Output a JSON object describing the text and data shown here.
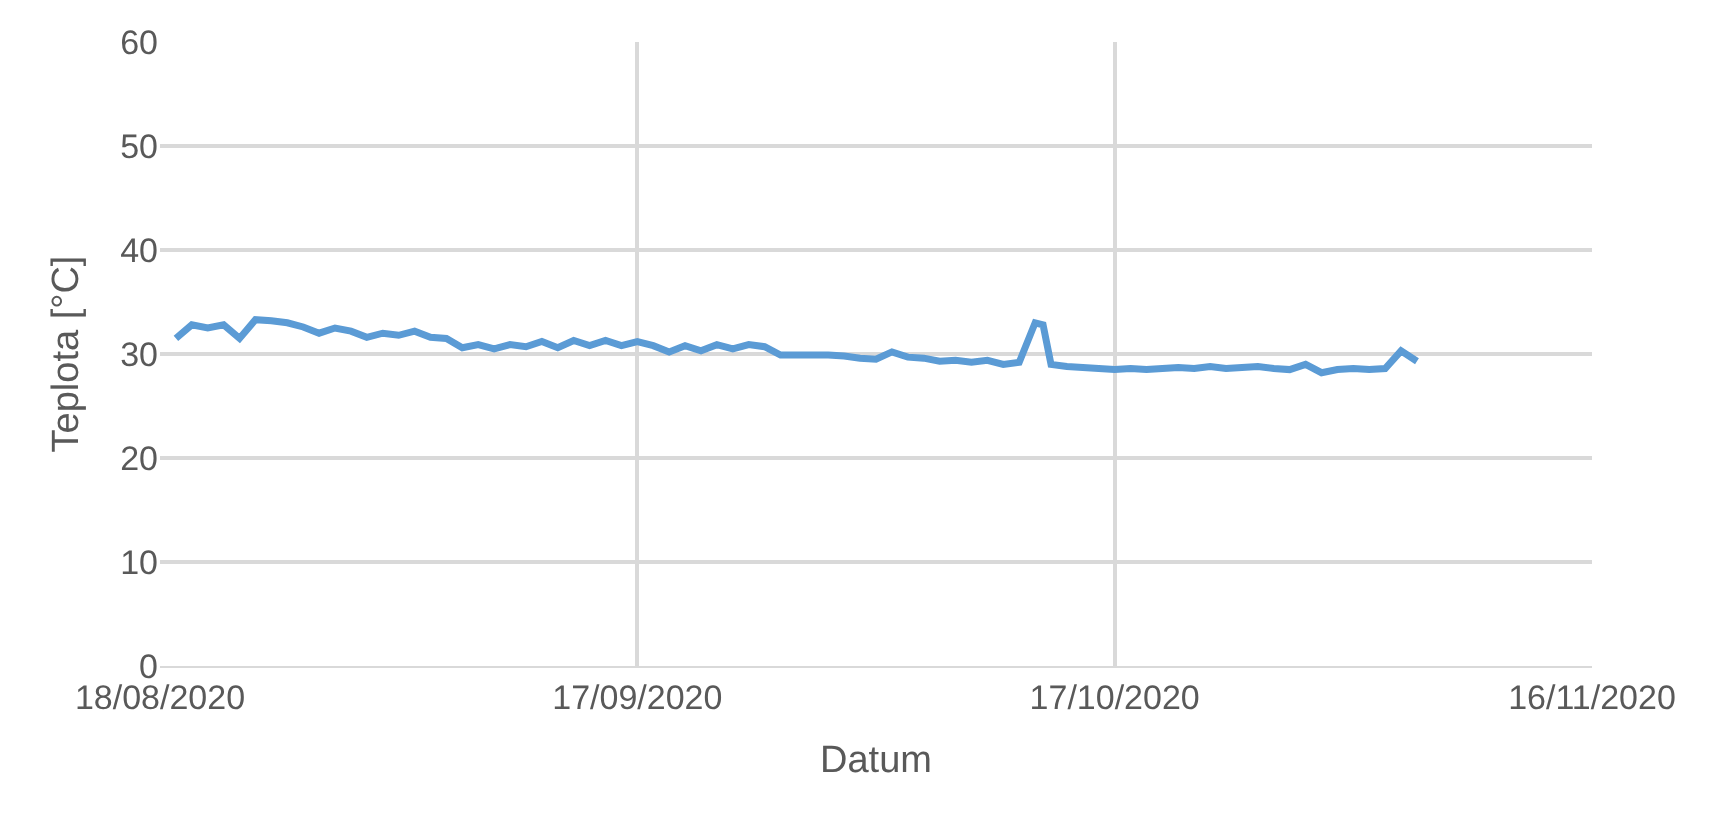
{
  "chart_data": {
    "type": "line",
    "xlabel": "Datum",
    "ylabel": "Teplota [°C]",
    "x": [
      "2020-08-19",
      "2020-08-20",
      "2020-08-21",
      "2020-08-22",
      "2020-08-23",
      "2020-08-24",
      "2020-08-25",
      "2020-08-26",
      "2020-08-27",
      "2020-08-28",
      "2020-08-29",
      "2020-08-30",
      "2020-08-31",
      "2020-09-01",
      "2020-09-02",
      "2020-09-03",
      "2020-09-04",
      "2020-09-05",
      "2020-09-06",
      "2020-09-07",
      "2020-09-08",
      "2020-09-09",
      "2020-09-10",
      "2020-09-11",
      "2020-09-12",
      "2020-09-13",
      "2020-09-14",
      "2020-09-15",
      "2020-09-16",
      "2020-09-17",
      "2020-09-18",
      "2020-09-19",
      "2020-09-20",
      "2020-09-21",
      "2020-09-22",
      "2020-09-23",
      "2020-09-24",
      "2020-09-25",
      "2020-09-26",
      "2020-09-27",
      "2020-09-28",
      "2020-09-29",
      "2020-09-30",
      "2020-10-01",
      "2020-10-02",
      "2020-10-03",
      "2020-10-04",
      "2020-10-05",
      "2020-10-06",
      "2020-10-07",
      "2020-10-08",
      "2020-10-09",
      "2020-10-10",
      "2020-10-11",
      "2020-10-12",
      "2020-10-12T12:00",
      "2020-10-13",
      "2020-10-14",
      "2020-10-15",
      "2020-10-16",
      "2020-10-17",
      "2020-10-18",
      "2020-10-19",
      "2020-10-20",
      "2020-10-21",
      "2020-10-22",
      "2020-10-23",
      "2020-10-24",
      "2020-10-25",
      "2020-10-26",
      "2020-10-27",
      "2020-10-28",
      "2020-10-29",
      "2020-10-30",
      "2020-10-31",
      "2020-11-01",
      "2020-11-02",
      "2020-11-03",
      "2020-11-04",
      "2020-11-05"
    ],
    "series": [
      {
        "color": "#5b9bd5",
        "values": [
          31.5,
          32.8,
          32.5,
          32.8,
          31.5,
          33.3,
          33.2,
          33.0,
          32.6,
          32.0,
          32.5,
          32.2,
          31.6,
          32.0,
          31.8,
          32.2,
          31.6,
          31.5,
          30.6,
          30.9,
          30.5,
          30.9,
          30.7,
          31.2,
          30.6,
          31.3,
          30.8,
          31.3,
          30.8,
          31.2,
          30.8,
          30.2,
          30.8,
          30.3,
          30.9,
          30.5,
          30.9,
          30.7,
          29.9,
          29.9,
          29.9,
          29.9,
          29.8,
          29.6,
          29.5,
          30.2,
          29.7,
          29.6,
          29.3,
          29.4,
          29.2,
          29.4,
          29.0,
          29.2,
          33.0,
          32.8,
          29.0,
          28.8,
          28.7,
          28.6,
          28.5,
          28.6,
          28.5,
          28.6,
          28.7,
          28.6,
          28.8,
          28.6,
          28.7,
          28.8,
          28.6,
          28.5,
          29.0,
          28.2,
          28.5,
          28.6,
          28.5,
          28.6,
          30.3,
          29.3
        ]
      }
    ],
    "xlim": [
      "2020-08-18",
      "2020-11-16"
    ],
    "xticks": [
      {
        "value": "2020-08-18",
        "label": "18/08/2020"
      },
      {
        "value": "2020-09-17",
        "label": "17/09/2020"
      },
      {
        "value": "2020-10-17",
        "label": "17/10/2020"
      },
      {
        "value": "2020-11-16",
        "label": "16/11/2020"
      }
    ],
    "ylim": [
      0,
      60
    ],
    "yticks": [
      0,
      10,
      20,
      30,
      40,
      50,
      60
    ],
    "grid": true,
    "legend": false,
    "marker": "none",
    "line_style": "solid"
  }
}
